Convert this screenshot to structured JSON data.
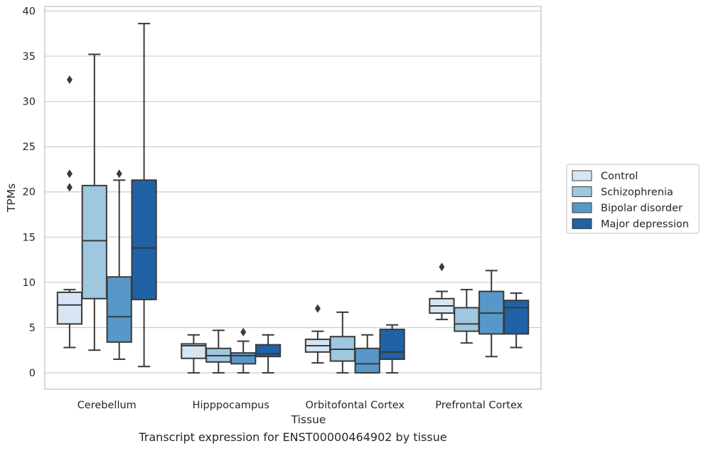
{
  "caption": "Transcript expression for ENST00000464902 by tissue",
  "chart_data": {
    "type": "boxplot",
    "xlabel": "Tissue",
    "ylabel": "TPMs",
    "ylim": [
      -1.8,
      40.5
    ],
    "yticks": [
      0,
      5,
      10,
      15,
      20,
      25,
      30,
      35,
      40
    ],
    "grid": "horizontal",
    "legend_position": "right",
    "categories": [
      "Cerebellum",
      "Hipppocampus",
      "Orbitofontal Cortex",
      "Prefrontal Cortex"
    ],
    "series": [
      {
        "name": "Control",
        "color": "#d6e5f4",
        "boxes": [
          {
            "whisker_low": 2.8,
            "q1": 5.4,
            "median": 7.5,
            "q3": 8.9,
            "whisker_high": 9.2,
            "outliers": [
              32.4,
              22.0,
              20.5
            ]
          },
          {
            "whisker_low": 0.0,
            "q1": 1.6,
            "median": 3.0,
            "q3": 3.2,
            "whisker_high": 4.2,
            "outliers": []
          },
          {
            "whisker_low": 1.1,
            "q1": 2.3,
            "median": 3.0,
            "q3": 3.7,
            "whisker_high": 4.6,
            "outliers": [
              7.1
            ]
          },
          {
            "whisker_low": 5.9,
            "q1": 6.6,
            "median": 7.4,
            "q3": 8.2,
            "whisker_high": 9.0,
            "outliers": [
              11.7
            ]
          }
        ]
      },
      {
        "name": "Schizophrenia",
        "color": "#9ec7e0",
        "boxes": [
          {
            "whisker_low": 2.5,
            "q1": 8.2,
            "median": 14.6,
            "q3": 20.7,
            "whisker_high": 35.2,
            "outliers": []
          },
          {
            "whisker_low": 0.0,
            "q1": 1.2,
            "median": 1.9,
            "q3": 2.7,
            "whisker_high": 4.7,
            "outliers": []
          },
          {
            "whisker_low": 0.0,
            "q1": 1.3,
            "median": 2.6,
            "q3": 4.0,
            "whisker_high": 6.7,
            "outliers": []
          },
          {
            "whisker_low": 3.3,
            "q1": 4.6,
            "median": 5.4,
            "q3": 7.2,
            "whisker_high": 9.2,
            "outliers": []
          }
        ]
      },
      {
        "name": "Bipolar disorder",
        "color": "#5798c8",
        "boxes": [
          {
            "whisker_low": 1.5,
            "q1": 3.4,
            "median": 6.2,
            "q3": 10.6,
            "whisker_high": 21.3,
            "outliers": [
              22.0
            ]
          },
          {
            "whisker_low": 0.0,
            "q1": 1.0,
            "median": 1.9,
            "q3": 2.2,
            "whisker_high": 3.5,
            "outliers": [
              4.5
            ]
          },
          {
            "whisker_low": 0.0,
            "q1": 0.0,
            "median": 1.0,
            "q3": 2.7,
            "whisker_high": 4.2,
            "outliers": []
          },
          {
            "whisker_low": 1.8,
            "q1": 4.3,
            "median": 6.6,
            "q3": 9.0,
            "whisker_high": 11.3,
            "outliers": []
          }
        ]
      },
      {
        "name": "Major depression",
        "color": "#1f62a6",
        "boxes": [
          {
            "whisker_low": 0.7,
            "q1": 8.1,
            "median": 13.8,
            "q3": 21.3,
            "whisker_high": 38.6,
            "outliers": []
          },
          {
            "whisker_low": 0.0,
            "q1": 1.8,
            "median": 2.1,
            "q3": 3.1,
            "whisker_high": 4.2,
            "outliers": []
          },
          {
            "whisker_low": 0.0,
            "q1": 1.5,
            "median": 2.3,
            "q3": 4.8,
            "whisker_high": 5.3,
            "outliers": []
          },
          {
            "whisker_low": 2.8,
            "q1": 4.3,
            "median": 7.2,
            "q3": 8.0,
            "whisker_high": 8.8,
            "outliers": []
          }
        ]
      }
    ]
  }
}
